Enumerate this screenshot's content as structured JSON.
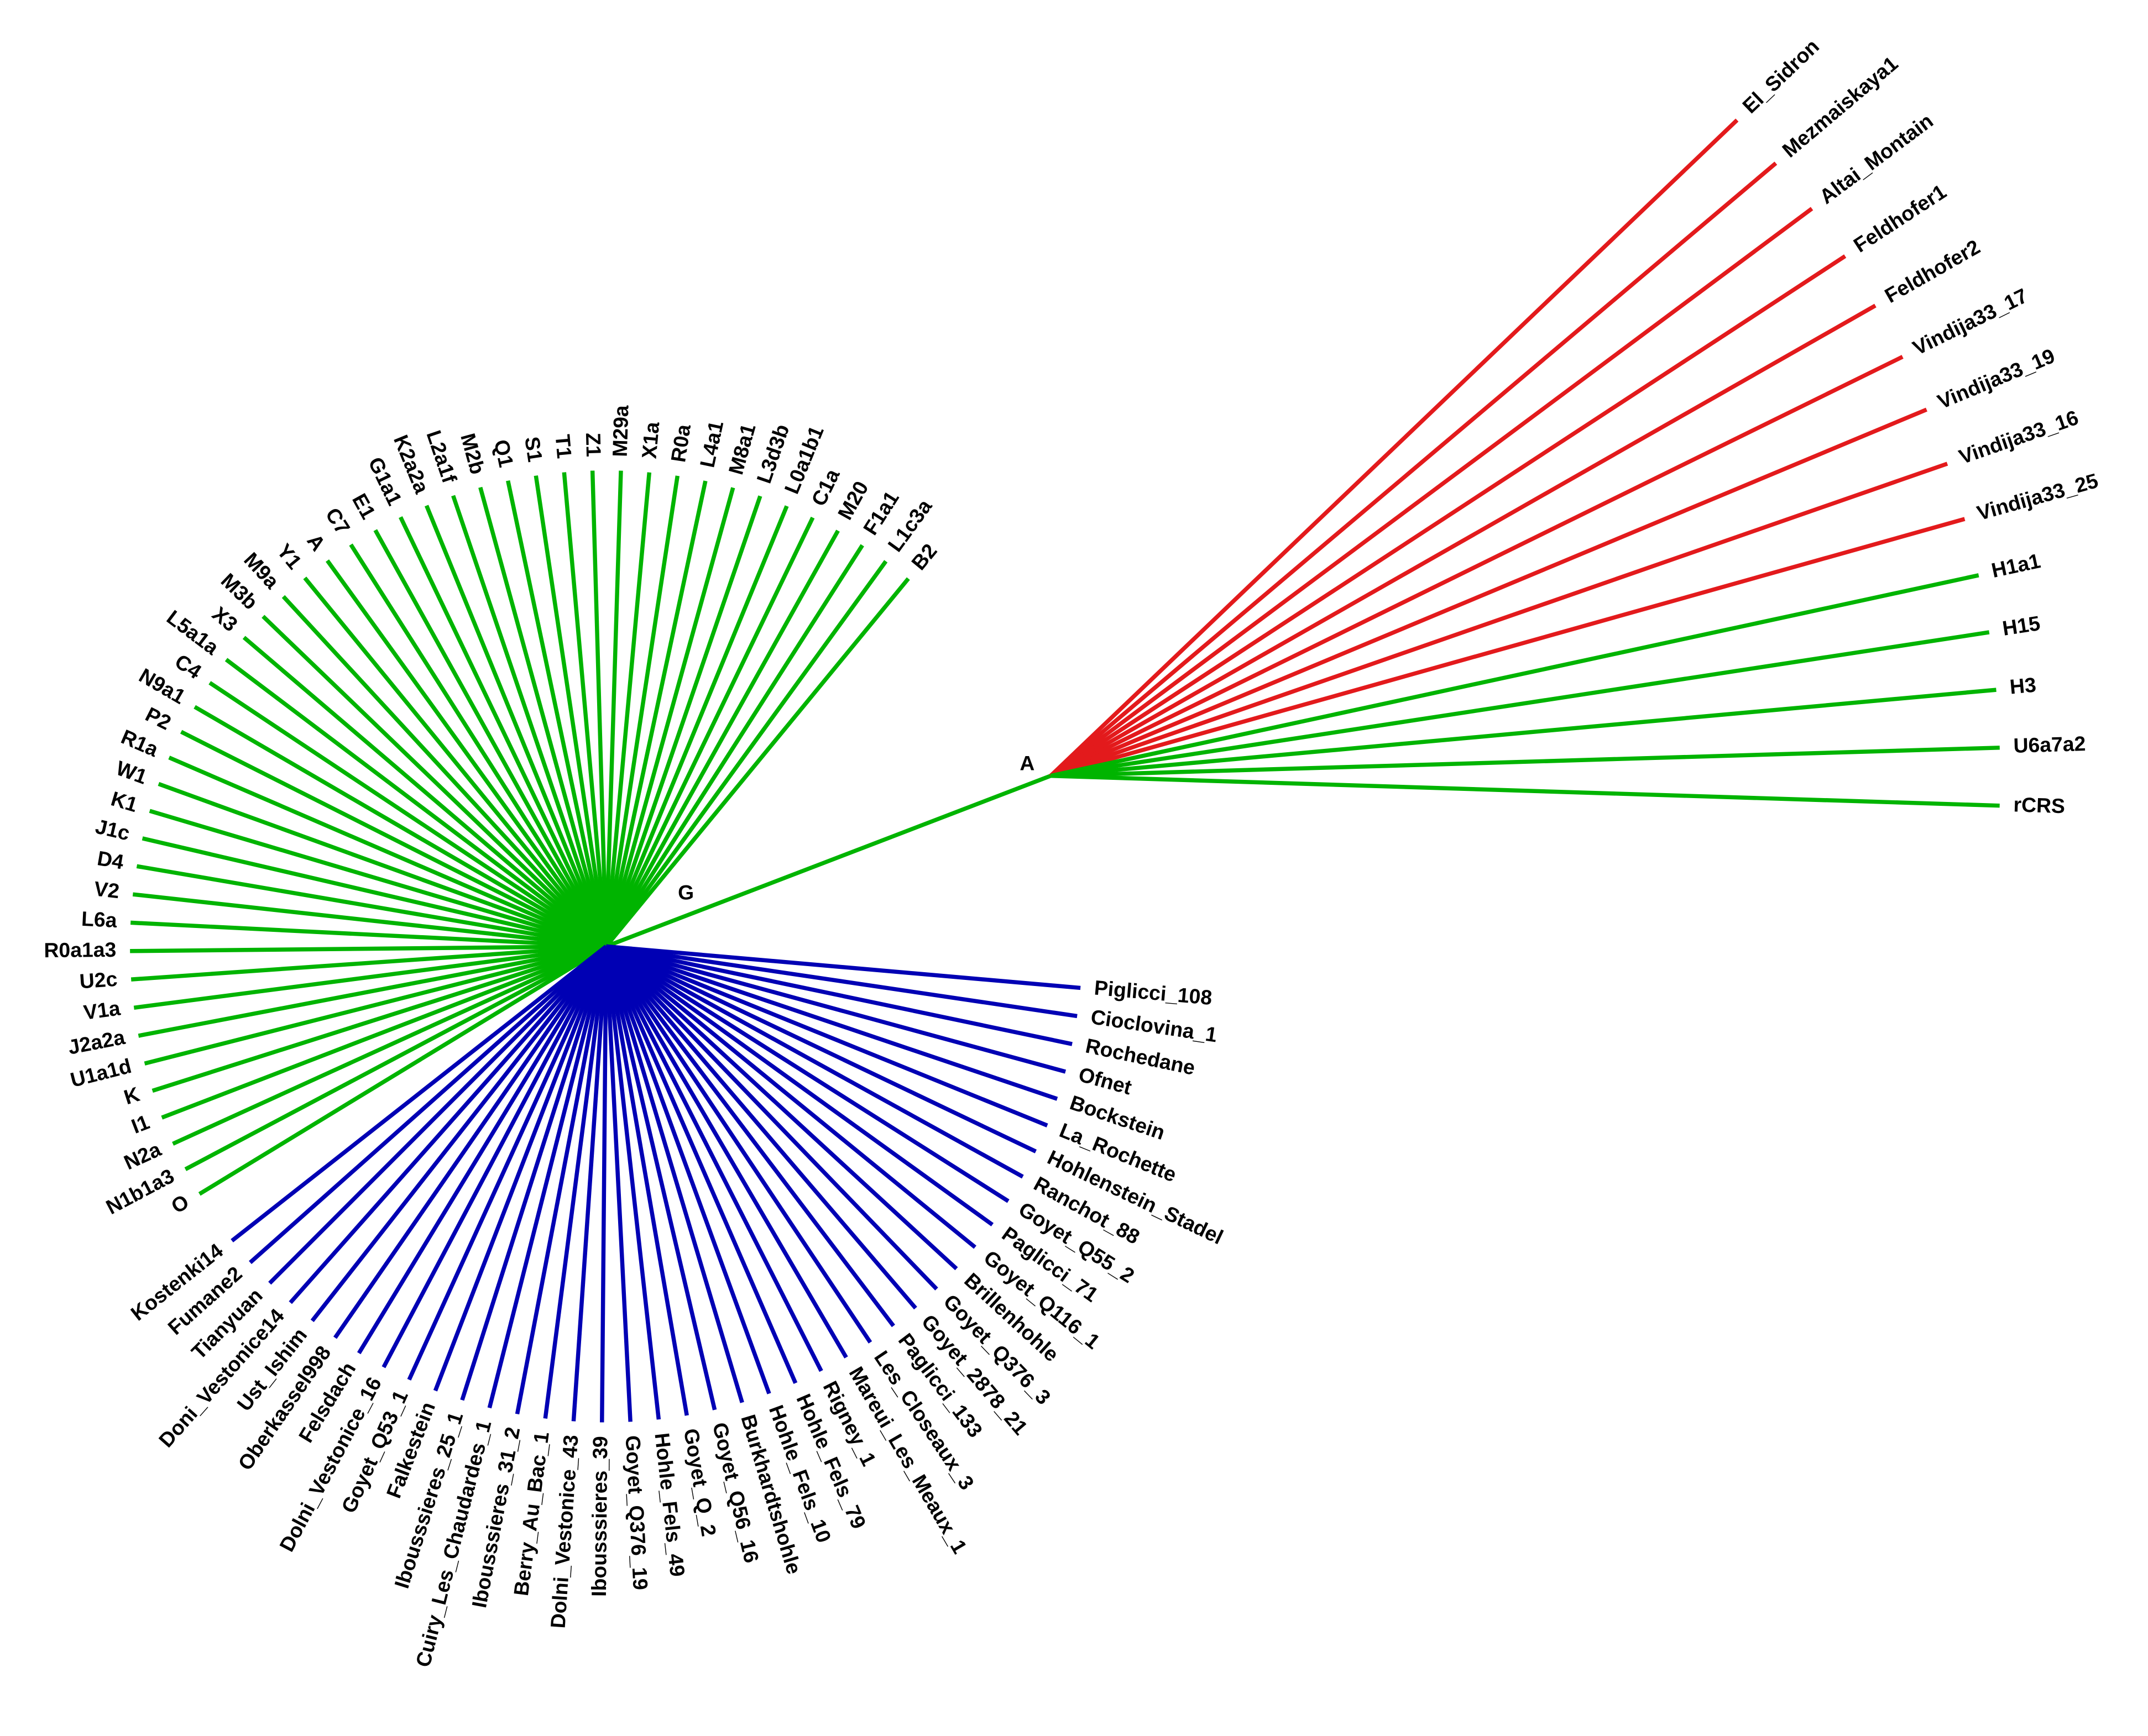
{
  "nodes": [
    {
      "label": "A",
      "clades": [
        {
          "color": "#e31a1c",
          "leaves": [
            "El_Sidron",
            "Mezmaiskaya1",
            "Altai_Montain",
            "Feldhofer1",
            "Feldhofer2",
            "Vindija33_17",
            "Vindija33_19",
            "Vindija33_16",
            "Vindija33_25"
          ]
        },
        {
          "color": "#00b400",
          "leaves": [
            "H1a1",
            "H15",
            "H3",
            "U6a7a2",
            "rCRS"
          ]
        }
      ]
    },
    {
      "label": "G",
      "clades": [
        {
          "color": "#00b400",
          "leaves": [
            "B2",
            "L1c3a",
            "F1a1",
            "M20",
            "C1a",
            "L0a1b1",
            "L3d3b",
            "M8a1",
            "L4a1",
            "R0a",
            "X1a",
            "M29a",
            "Z1",
            "T1",
            "S1",
            "Q1",
            "M2b",
            "L2a1f",
            "K2a2a",
            "G1a1",
            "E1",
            "C7",
            "A",
            "Y1",
            "M9a",
            "M3b",
            "X3",
            "L5a1a",
            "C4",
            "N9a1",
            "P2",
            "R1a",
            "W1",
            "K1",
            "J1c",
            "D4",
            "V2",
            "L6a",
            "R0a1a3",
            "U2c",
            "V1a",
            "J2a2a",
            "U1a1d",
            "K",
            "I1",
            "N2a",
            "N1b1a3",
            "O"
          ]
        },
        {
          "color": "#0000b4",
          "leaves": [
            "Piglicci_108",
            "Cioclovina_1",
            "Rochedane",
            "Ofnet",
            "Bockstein",
            "La_Rochette",
            "Hohlenstein_Stadel",
            "Ranchot_88",
            "Goyet_Q55_2",
            "Paglicci_71",
            "Goyet_Q116_1",
            "Brillenhohle",
            "Goyet_Q376_3",
            "Goyet_2878_21",
            "Paglicci_133",
            "Les_Closeaux_3",
            "Mareui_Les_Meaux_1",
            "Rigney_1",
            "Hohle_Fels_79",
            "Hohle_Fels_10",
            "Burkhardtshohle",
            "Goyet_Q56_16",
            "Goyet_Q_2",
            "Hohle_Fels_49",
            "Goyet_Q376_19",
            "Ibousssieres_39",
            "Dolni_Vestonice_43",
            "Berry_Au_Bac_1",
            "Ibousssieres_31_2",
            "Cuiry_Les_Chaudardes_1",
            "Ibousssieres_25_1",
            "Falkestein",
            "Goyet_Q53_1",
            "Dolni_Vestonice_16",
            "Felsdach",
            "Oberkassel998",
            "Ust_Ishim",
            "Doni_Vestonice14",
            "Tianyuan",
            "Fumane2",
            "Kostenki14"
          ]
        }
      ]
    }
  ]
}
